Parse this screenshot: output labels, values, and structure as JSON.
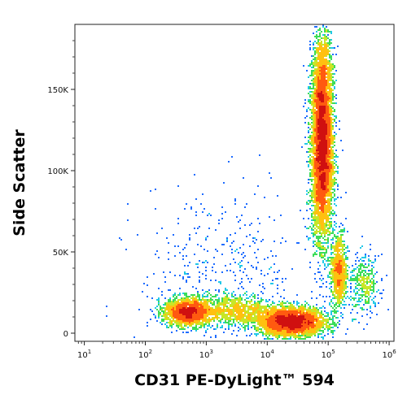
{
  "chart_data": {
    "type": "scatter",
    "subtype": "flow-cytometry density dot plot",
    "xlabel": "CD31 PE-DyLight™ 594",
    "ylabel": "Side Scatter",
    "x_scale": "log",
    "xlim": [
      7,
      1200000
    ],
    "ylim": [
      -5000,
      190000
    ],
    "x_ticks": [
      {
        "value": 10,
        "base": "10",
        "exp": "1"
      },
      {
        "value": 100,
        "base": "10",
        "exp": "2"
      },
      {
        "value": 1000,
        "base": "10",
        "exp": "3"
      },
      {
        "value": 10000,
        "base": "10",
        "exp": "4"
      },
      {
        "value": 100000,
        "base": "10",
        "exp": "5"
      },
      {
        "value": 1000000,
        "base": "10",
        "exp": "6"
      }
    ],
    "y_ticks": [
      {
        "value": 0,
        "label": "0"
      },
      {
        "value": 50000,
        "label": "50K"
      },
      {
        "value": 100000,
        "label": "100K"
      },
      {
        "value": 150000,
        "label": "150K"
      }
    ],
    "density_colors": [
      "#1010c8",
      "#1e6cff",
      "#22c8e8",
      "#3cdc5a",
      "#c8e628",
      "#ffc010",
      "#ff5a10",
      "#d01010"
    ],
    "populations": [
      {
        "x_center": 80000,
        "y_center": 110000,
        "x_spread_log": 0.09,
        "y_spread": 26000,
        "count": 5200
      },
      {
        "x_center": 80000,
        "y_center": 155000,
        "x_spread_log": 0.08,
        "y_spread": 18000,
        "count": 1200
      },
      {
        "x_center": 150000,
        "y_center": 38000,
        "x_spread_log": 0.07,
        "y_spread": 12000,
        "count": 900
      },
      {
        "x_center": 25000,
        "y_center": 7000,
        "x_spread_log": 0.28,
        "y_spread": 4500,
        "count": 3200
      },
      {
        "x_center": 500,
        "y_center": 13000,
        "x_spread_log": 0.2,
        "y_spread": 4500,
        "count": 1800
      },
      {
        "x_center": 3000,
        "y_center": 14000,
        "x_spread_log": 0.3,
        "y_spread": 5000,
        "count": 900
      },
      {
        "x_center": 400000,
        "y_center": 30000,
        "x_spread_log": 0.12,
        "y_spread": 9000,
        "count": 350
      },
      {
        "x_center": 2000,
        "y_center": 40000,
        "x_spread_log": 0.7,
        "y_spread": 25000,
        "count": 380
      }
    ]
  }
}
